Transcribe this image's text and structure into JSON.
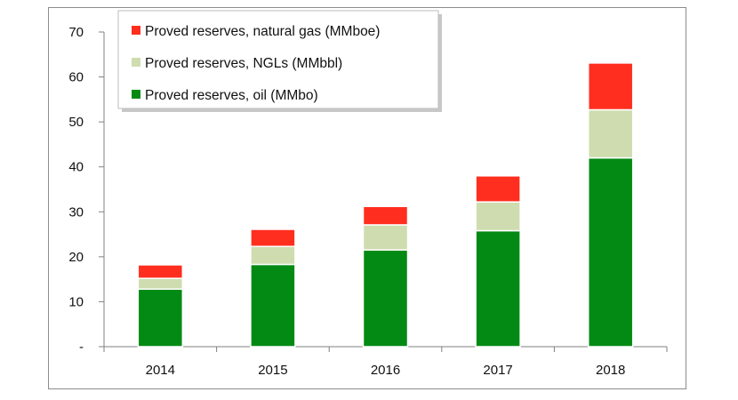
{
  "chart_data": {
    "type": "bar",
    "stacked": true,
    "categories": [
      "2014",
      "2015",
      "2016",
      "2017",
      "2018"
    ],
    "series": [
      {
        "name": "Proved reserves, oil (MMbo)",
        "color": "#038a14",
        "values": [
          12.8,
          18.3,
          21.5,
          25.8,
          42.0
        ]
      },
      {
        "name": "Proved reserves, NGLs (MMbbl)",
        "color": "#cfdcb0",
        "values": [
          2.4,
          4.0,
          5.6,
          6.4,
          10.7
        ]
      },
      {
        "name": "Proved reserves, natural gas (MMboe)",
        "color": "#ff2e1f",
        "values": [
          3.0,
          3.8,
          4.1,
          5.8,
          10.4
        ]
      }
    ],
    "ylim": [
      0,
      70
    ],
    "yticks": [
      "-",
      "10",
      "20",
      "30",
      "40",
      "50",
      "60",
      "70"
    ],
    "gridlines": false,
    "legend_position": "top-left",
    "legend_order": [
      "Proved reserves, natural gas (MMboe)",
      "Proved reserves, NGLs (MMbbl)",
      "Proved reserves, oil (MMbo)"
    ]
  }
}
